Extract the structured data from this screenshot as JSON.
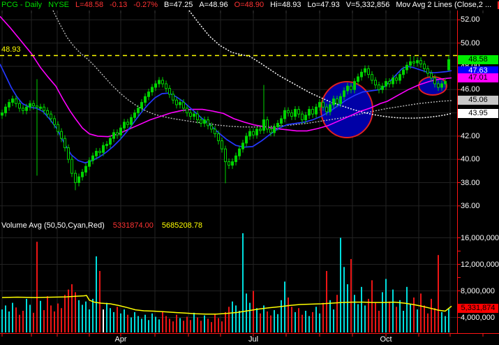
{
  "header": {
    "symbol": "PCG - Daily",
    "exchange": "NYSE",
    "last": "L=48.58",
    "change": "-0.13",
    "change_pct": "-0.27%",
    "bid": "B=47.25",
    "ask": "A=48.96",
    "open": "O=48.90",
    "high": "Hi=48.93",
    "low": "Lo=47.93",
    "volume": "V=5,332,856",
    "study": "Mov Avg 2 Lines (Close,2 ..."
  },
  "volume_header": {
    "title": "Volume Avg (50,50,Cyan,Red)",
    "avg_red": "5331874.00",
    "avg_yellow": "5685208.78"
  },
  "colors": {
    "background": "#000000",
    "candle": "#00d400",
    "ma_blue": "#2438ff",
    "ma_magenta": "#ff00ff",
    "ma_white": "#ffffff",
    "ma_gray": "#b9b9b9",
    "alert_yellow": "#ffff00",
    "vol_up": "#00dede",
    "vol_down": "#ee1515",
    "vol_white": "#ffffff",
    "vol_ma": "#ffff00",
    "axis_red": "#ff1414",
    "grid": "#232323",
    "tick_gray": "#3c3c3c",
    "ellipse_fill": "#0000a6",
    "ellipse_stroke": "#e02020"
  },
  "price_axis": {
    "ticks": [
      {
        "label": "52.00",
        "price": 52
      },
      {
        "label": "50.00",
        "price": 50
      },
      {
        "label": "46.00",
        "price": 46
      },
      {
        "label": "42.00",
        "price": 42
      },
      {
        "label": "40.00",
        "price": 40
      },
      {
        "label": "38.00",
        "price": 38
      },
      {
        "label": "36.00",
        "price": 36
      }
    ],
    "partial_tick": {
      "label": "48.00",
      "price": 48
    },
    "grid_levels": [
      36,
      38,
      40,
      42,
      44,
      46,
      48,
      50,
      52
    ],
    "badges": [
      {
        "label": "48.58",
        "price": 48.58,
        "bg": "#00ee00",
        "fg": "#000000"
      },
      {
        "label": "47.63",
        "price": 47.63,
        "bg": "#0000ff",
        "fg": "#ffffff"
      },
      {
        "label": "47.01",
        "price": 47.01,
        "bg": "#ff00ff",
        "fg": "#000000"
      },
      {
        "label": "45.06",
        "price": 45.06,
        "bg": "#c8c8c8",
        "fg": "#000000"
      },
      {
        "label": "43.95",
        "price": 43.95,
        "bg": "#ffffff",
        "fg": "#000000"
      }
    ],
    "alert": {
      "label": "48.93",
      "price": 48.93
    }
  },
  "volume_axis": {
    "ticks": [
      {
        "label": "16,000,000",
        "value": 16
      },
      {
        "label": "12,000,000",
        "value": 12
      },
      {
        "label": "8,000,000",
        "value": 8
      },
      {
        "label": "4,000,000",
        "value": 4
      }
    ],
    "grid_levels": [
      4,
      8,
      12,
      16
    ],
    "minor_tick_values": [
      4,
      6,
      8,
      10,
      12,
      14,
      16
    ],
    "badge": {
      "label": "5,331,874",
      "value": 5.33,
      "bg": "#ff0000",
      "fg": "#000000"
    },
    "yellow_strip_value": 5.69
  },
  "x_axis": {
    "month_tick_x": [
      3,
      45,
      82,
      128,
      173,
      222,
      270,
      316,
      363,
      410,
      458,
      505,
      553,
      600,
      645,
      692
    ],
    "labels": [
      {
        "text": "Apr",
        "x": 173
      },
      {
        "text": "Jul",
        "x": 363
      },
      {
        "text": "Oct",
        "x": 553
      }
    ]
  },
  "chart_data": {
    "type": "candlestick+volume",
    "symbol": "PCG",
    "timeframe": "Daily",
    "exchange": "NYSE",
    "title": "PCG - Daily NYSE with Mov Avg 2 Lines and Volume Avg (50,50)",
    "ylim": [
      35.5,
      52.8
    ],
    "volume_ylim_millions": [
      1.8,
      17
    ],
    "grid": true,
    "x_start": 3,
    "x_step": 5,
    "closes": [
      44.0,
      44.5,
      44.9,
      45.2,
      44.8,
      44.4,
      44.2,
      44.5,
      44.8,
      44.6,
      44.5,
      44.5,
      44.2,
      43.9,
      43.5,
      43.0,
      42.4,
      41.8,
      41.0,
      40.0,
      38.8,
      38.0,
      38.5,
      38.9,
      39.4,
      39.9,
      40.3,
      40.7,
      40.6,
      41.2,
      41.3,
      41.8,
      42.3,
      42.1,
      42.7,
      43.2,
      43.0,
      43.6,
      44.0,
      44.4,
      44.9,
      45.4,
      45.8,
      46.2,
      46.5,
      46.8,
      46.5,
      46.1,
      45.6,
      45.1,
      44.7,
      44.9,
      44.4,
      44.0,
      43.7,
      43.9,
      43.4,
      43.1,
      43.4,
      42.9,
      42.6,
      42.2,
      41.6,
      40.9,
      39.8,
      39.5,
      39.8,
      40.3,
      40.9,
      41.4,
      42.0,
      42.4,
      42.1,
      42.6,
      42.5,
      43.4,
      42.6,
      42.3,
      42.8,
      43.1,
      43.5,
      44.2,
      44.0,
      43.7,
      44.3,
      43.9,
      43.4,
      43.8,
      44.3,
      43.9,
      44.5,
      44.9,
      44.5,
      44.1,
      44.7,
      45.2,
      44.8,
      45.4,
      45.9,
      46.3,
      46.0,
      46.7,
      47.1,
      47.5,
      47.8,
      47.3,
      46.8,
      46.4,
      46.0,
      46.3,
      46.7,
      46.5,
      47.0,
      46.8,
      47.3,
      47.7,
      48.1,
      48.4,
      48.3,
      48.5,
      48.2,
      47.8,
      47.4,
      47.0,
      46.5,
      46.2,
      46.5,
      46.7,
      48.58
    ],
    "bar_overrides": {
      "10": {
        "h": 46.9,
        "l": 38.6
      },
      "21": {
        "l": 37.35
      },
      "64": {
        "l": 37.95
      },
      "75": {
        "h": 46.4,
        "l": 42.2
      },
      "117": {
        "h": 48.85
      },
      "118": {
        "h": 48.9
      },
      "128": {
        "o": 47.7,
        "h": 48.93,
        "l": 47.6
      }
    },
    "volumes_millions": [
      5.2,
      5.8,
      4.9,
      6.2,
      5.5,
      4.4,
      5.0,
      6.8,
      5.9,
      4.7,
      15.4,
      6.5,
      5.1,
      7.2,
      5.8,
      4.9,
      6.1,
      5.4,
      7.4,
      8.2,
      9.0,
      7.8,
      6.6,
      5.9,
      6.4,
      5.2,
      6.8,
      13.2,
      11.0,
      5.2,
      6.2,
      5.4,
      4.8,
      5.6,
      4.6,
      5.2,
      4.4,
      4.0,
      4.8,
      4.2,
      3.8,
      4.4,
      3.6,
      4.6,
      4.1,
      3.7,
      4.9,
      4.2,
      3.8,
      3.4,
      4.4,
      3.9,
      3.5,
      4.1,
      3.6,
      4.7,
      4.0,
      3.5,
      4.3,
      3.8,
      3.3,
      4.5,
      3.9,
      3.4,
      4.8,
      5.6,
      6.4,
      5.8,
      5.0,
      17.2,
      7.6,
      6.2,
      8.0,
      5.4,
      4.6,
      5.8,
      4.9,
      4.3,
      5.1,
      4.5,
      6.6,
      9.4,
      7.0,
      5.6,
      4.8,
      5.4,
      4.4,
      5.0,
      4.2,
      4.8,
      5.6,
      4.6,
      6.2,
      11.0,
      6.6,
      5.2,
      7.4,
      16.0,
      11.6,
      9.0,
      12.8,
      7.4,
      6.0,
      8.6,
      5.8,
      6.8,
      9.6,
      6.2,
      5.0,
      7.8,
      9.8,
      6.4,
      8.2,
      5.6,
      6.6,
      5.0,
      8.6,
      6.0,
      7.0,
      5.2,
      7.6,
      5.8,
      4.6,
      6.8,
      5.4,
      13.4,
      4.8,
      4.2,
      5.3
    ],
    "white_volume_bar_index": 29,
    "ma_lines": {
      "blue": [
        [
          0,
          48.2
        ],
        [
          8,
          47.2
        ],
        [
          16,
          46.2
        ],
        [
          24,
          45.4
        ],
        [
          32,
          44.8
        ],
        [
          42,
          44.5
        ],
        [
          52,
          44.4
        ],
        [
          62,
          44.1
        ],
        [
          72,
          43.4
        ],
        [
          82,
          42.6
        ],
        [
          92,
          41.4
        ],
        [
          102,
          40.4
        ],
        [
          112,
          39.9
        ],
        [
          122,
          39.7
        ],
        [
          132,
          39.9
        ],
        [
          142,
          40.2
        ],
        [
          152,
          40.6
        ],
        [
          162,
          41.1
        ],
        [
          172,
          41.7
        ],
        [
          182,
          42.4
        ],
        [
          192,
          43.2
        ],
        [
          202,
          44.0
        ],
        [
          212,
          44.7
        ],
        [
          222,
          45.3
        ],
        [
          232,
          45.65
        ],
        [
          242,
          45.7
        ],
        [
          252,
          45.4
        ],
        [
          262,
          45.0
        ],
        [
          275,
          44.3
        ],
        [
          288,
          43.6
        ],
        [
          300,
          43.0
        ],
        [
          313,
          42.3
        ],
        [
          325,
          41.7
        ],
        [
          338,
          41.2
        ],
        [
          350,
          41.05
        ],
        [
          362,
          41.1
        ],
        [
          375,
          41.6
        ],
        [
          388,
          42.2
        ],
        [
          400,
          42.7
        ],
        [
          412,
          43.0
        ],
        [
          424,
          43.1
        ],
        [
          436,
          43.2
        ],
        [
          448,
          43.4
        ],
        [
          460,
          43.7
        ],
        [
          472,
          44.1
        ],
        [
          484,
          44.6
        ],
        [
          496,
          45.1
        ],
        [
          508,
          45.5
        ],
        [
          520,
          45.8
        ],
        [
          532,
          45.9
        ],
        [
          544,
          46.0
        ],
        [
          552,
          46.3
        ],
        [
          560,
          46.8
        ],
        [
          568,
          47.3
        ],
        [
          576,
          47.8
        ],
        [
          584,
          48.0
        ],
        [
          592,
          47.9
        ],
        [
          602,
          47.7
        ],
        [
          612,
          47.5
        ],
        [
          622,
          47.45
        ],
        [
          632,
          47.5
        ],
        [
          640,
          47.55
        ],
        [
          647,
          47.63
        ]
      ],
      "magenta": [
        [
          0,
          52.3
        ],
        [
          15,
          51.3
        ],
        [
          30,
          50.2
        ],
        [
          45,
          49.1
        ],
        [
          58,
          47.9
        ],
        [
          70,
          47.0
        ],
        [
          80,
          46.3
        ],
        [
          90,
          45.2
        ],
        [
          100,
          44.2
        ],
        [
          108,
          43.5
        ],
        [
          118,
          42.7
        ],
        [
          128,
          42.2
        ],
        [
          140,
          42.0
        ],
        [
          155,
          41.95
        ],
        [
          170,
          42.2
        ],
        [
          185,
          42.6
        ],
        [
          200,
          43.0
        ],
        [
          215,
          43.4
        ],
        [
          230,
          43.7
        ],
        [
          245,
          44.0
        ],
        [
          260,
          44.2
        ],
        [
          275,
          44.3
        ],
        [
          290,
          44.3
        ],
        [
          305,
          44.15
        ],
        [
          320,
          43.95
        ],
        [
          335,
          43.5
        ],
        [
          350,
          43.2
        ],
        [
          365,
          42.95
        ],
        [
          380,
          42.8
        ],
        [
          395,
          42.65
        ],
        [
          410,
          42.55
        ],
        [
          425,
          42.45
        ],
        [
          440,
          42.45
        ],
        [
          455,
          42.65
        ],
        [
          470,
          42.9
        ],
        [
          485,
          43.3
        ],
        [
          500,
          43.7
        ],
        [
          515,
          44.1
        ],
        [
          530,
          44.4
        ],
        [
          545,
          44.8
        ],
        [
          555,
          45.0
        ],
        [
          570,
          45.5
        ],
        [
          585,
          46.0
        ],
        [
          600,
          46.4
        ],
        [
          615,
          46.7
        ],
        [
          630,
          46.9
        ],
        [
          647,
          47.01
        ]
      ],
      "white": [
        [
          271,
          52.8
        ],
        [
          285,
          51.7
        ],
        [
          300,
          50.6
        ],
        [
          315,
          49.8
        ],
        [
          332,
          49.2
        ],
        [
          350,
          48.95
        ],
        [
          358,
          48.85
        ],
        [
          370,
          48.4
        ],
        [
          385,
          47.8
        ],
        [
          400,
          47.2
        ],
        [
          415,
          46.7
        ],
        [
          430,
          46.2
        ],
        [
          445,
          45.7
        ],
        [
          460,
          45.3
        ],
        [
          475,
          44.9
        ],
        [
          490,
          44.6
        ],
        [
          505,
          44.3
        ],
        [
          520,
          44.05
        ],
        [
          535,
          43.85
        ],
        [
          550,
          43.7
        ],
        [
          565,
          43.6
        ],
        [
          580,
          43.55
        ],
        [
          595,
          43.55
        ],
        [
          610,
          43.6
        ],
        [
          625,
          43.7
        ],
        [
          636,
          43.8
        ],
        [
          647,
          43.95
        ]
      ],
      "gray": [
        [
          76,
          52.8
        ],
        [
          86,
          51.6
        ],
        [
          96,
          50.5
        ],
        [
          106,
          49.7
        ],
        [
          116,
          49.1
        ],
        [
          126,
          48.6
        ],
        [
          136,
          48.0
        ],
        [
          148,
          47.2
        ],
        [
          160,
          46.4
        ],
        [
          172,
          45.7
        ],
        [
          184,
          45.1
        ],
        [
          196,
          44.6
        ],
        [
          208,
          44.2
        ],
        [
          220,
          43.9
        ],
        [
          232,
          43.7
        ],
        [
          248,
          43.5
        ],
        [
          264,
          43.35
        ],
        [
          280,
          43.2
        ],
        [
          296,
          43.1
        ],
        [
          312,
          42.95
        ],
        [
          328,
          42.85
        ],
        [
          344,
          42.8
        ],
        [
          360,
          42.78
        ],
        [
          376,
          42.8
        ],
        [
          392,
          42.85
        ],
        [
          408,
          42.9
        ],
        [
          424,
          43.0
        ],
        [
          440,
          43.1
        ],
        [
          456,
          43.25
        ],
        [
          472,
          43.4
        ],
        [
          488,
          43.55
        ],
        [
          504,
          43.75
        ],
        [
          520,
          43.95
        ],
        [
          536,
          44.15
        ],
        [
          552,
          44.35
        ],
        [
          568,
          44.5
        ],
        [
          584,
          44.65
        ],
        [
          600,
          44.8
        ],
        [
          616,
          44.9
        ],
        [
          632,
          45.0
        ],
        [
          647,
          45.06
        ]
      ]
    },
    "volume_ma_yellow": [
      [
        3,
        7.0
      ],
      [
        25,
        7.05
      ],
      [
        50,
        7.0
      ],
      [
        75,
        7.05
      ],
      [
        95,
        7.1
      ],
      [
        110,
        7.2
      ],
      [
        120,
        7.25
      ],
      [
        124,
        7.3
      ],
      [
        128,
        6.6
      ],
      [
        135,
        6.3
      ],
      [
        145,
        6.15
      ],
      [
        158,
        6.05
      ],
      [
        170,
        5.8
      ],
      [
        182,
        5.5
      ],
      [
        194,
        5.15
      ],
      [
        206,
        5.0
      ],
      [
        220,
        4.95
      ],
      [
        235,
        4.85
      ],
      [
        250,
        4.75
      ],
      [
        265,
        4.65
      ],
      [
        280,
        4.55
      ],
      [
        295,
        4.5
      ],
      [
        310,
        4.5
      ],
      [
        325,
        4.6
      ],
      [
        340,
        4.75
      ],
      [
        355,
        5.0
      ],
      [
        370,
        5.25
      ],
      [
        385,
        5.45
      ],
      [
        400,
        5.6
      ],
      [
        415,
        5.8
      ],
      [
        430,
        5.95
      ],
      [
        445,
        6.0
      ],
      [
        460,
        6.05
      ],
      [
        475,
        6.15
      ],
      [
        490,
        6.25
      ],
      [
        505,
        6.3
      ],
      [
        520,
        6.3
      ],
      [
        535,
        6.25
      ],
      [
        550,
        6.25
      ],
      [
        565,
        6.3
      ],
      [
        580,
        6.15
      ],
      [
        592,
        5.95
      ],
      [
        604,
        5.7
      ],
      [
        616,
        5.4
      ],
      [
        628,
        5.1
      ],
      [
        638,
        4.95
      ],
      [
        647,
        5.69
      ]
    ],
    "alert_line_price": 48.93,
    "annotations": [
      {
        "type": "ellipse",
        "cx": 497,
        "cy": 157,
        "rx": 37,
        "ry": 40
      },
      {
        "type": "ellipse",
        "cx": 620,
        "cy": 123,
        "rx": 20,
        "ry": 13
      }
    ]
  }
}
